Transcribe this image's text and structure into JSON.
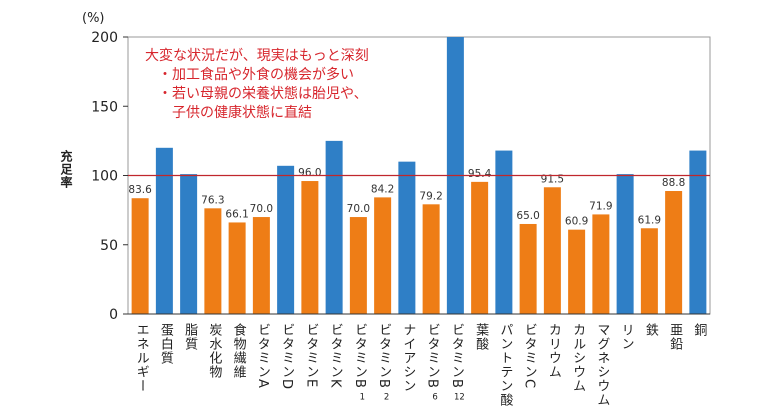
{
  "chart_data": {
    "type": "bar",
    "unit_label": "(%)",
    "ylabel": "充足率",
    "ylim": [
      0,
      200
    ],
    "yticks": [
      0,
      50,
      100,
      150,
      200
    ],
    "reference_line": 100,
    "categories": [
      {
        "label": "エネルギー",
        "sub": ""
      },
      {
        "label": "蛋白質",
        "sub": ""
      },
      {
        "label": "脂質",
        "sub": ""
      },
      {
        "label": "炭水化物",
        "sub": ""
      },
      {
        "label": "食物繊維",
        "sub": ""
      },
      {
        "label": "ビタミンA",
        "sub": ""
      },
      {
        "label": "ビタミンD",
        "sub": ""
      },
      {
        "label": "ビタミンE",
        "sub": ""
      },
      {
        "label": "ビタミンK",
        "sub": ""
      },
      {
        "label": "ビタミンB",
        "sub": "1"
      },
      {
        "label": "ビタミンB",
        "sub": "2"
      },
      {
        "label": "ナイアシン",
        "sub": ""
      },
      {
        "label": "ビタミンB",
        "sub": "6"
      },
      {
        "label": "ビタミンB",
        "sub": "12"
      },
      {
        "label": "葉酸",
        "sub": ""
      },
      {
        "label": "パントテン酸",
        "sub": ""
      },
      {
        "label": "ビタミンC",
        "sub": ""
      },
      {
        "label": "カリウム",
        "sub": ""
      },
      {
        "label": "カルシウム",
        "sub": ""
      },
      {
        "label": "マグネシウム",
        "sub": ""
      },
      {
        "label": "リン",
        "sub": ""
      },
      {
        "label": "鉄",
        "sub": ""
      },
      {
        "label": "亜鉛",
        "sub": ""
      },
      {
        "label": "銅",
        "sub": ""
      }
    ],
    "bars": [
      {
        "value": 83.6,
        "color": "orange",
        "label": "83.6"
      },
      {
        "value": 120,
        "color": "blue",
        "label": ""
      },
      {
        "value": 101,
        "color": "blue",
        "label": ""
      },
      {
        "value": 76.3,
        "color": "orange",
        "label": "76.3"
      },
      {
        "value": 66.1,
        "color": "orange",
        "label": "66.1"
      },
      {
        "value": 70.0,
        "color": "orange",
        "label": "70.0"
      },
      {
        "value": 107,
        "color": "blue",
        "label": ""
      },
      {
        "value": 96.0,
        "color": "orange",
        "label": "96.0"
      },
      {
        "value": 125,
        "color": "blue",
        "label": ""
      },
      {
        "value": 70.0,
        "color": "orange",
        "label": "70.0"
      },
      {
        "value": 84.2,
        "color": "orange",
        "label": "84.2"
      },
      {
        "value": 110,
        "color": "blue",
        "label": ""
      },
      {
        "value": 79.2,
        "color": "orange",
        "label": "79.2"
      },
      {
        "value": 200,
        "color": "blue",
        "label": ""
      },
      {
        "value": 95.4,
        "color": "orange",
        "label": "95.4"
      },
      {
        "value": 118,
        "color": "blue",
        "label": ""
      },
      {
        "value": 65.0,
        "color": "orange",
        "label": "65.0"
      },
      {
        "value": 91.5,
        "color": "orange",
        "label": "91.5"
      },
      {
        "value": 60.9,
        "color": "orange",
        "label": "60.9"
      },
      {
        "value": 71.9,
        "color": "orange",
        "label": "71.9"
      },
      {
        "value": 101,
        "color": "blue",
        "label": ""
      },
      {
        "value": 61.9,
        "color": "orange",
        "label": "61.9"
      },
      {
        "value": 88.8,
        "color": "orange",
        "label": "88.8"
      },
      {
        "value": 118,
        "color": "blue",
        "label": ""
      }
    ],
    "annotation": [
      "大変な状況だが、現実はもっと深刻",
      "・加工食品や外食の機会が多い",
      "・若い母親の栄養状態は胎児や、",
      "　子供の健康状態に直結"
    ],
    "colors": {
      "orange": "#ee7d16",
      "blue": "#2f7fc6",
      "reference": "#c0272d",
      "annotation": "#d7262d",
      "axis": "#333333",
      "grid": "#d9d9d9"
    }
  }
}
